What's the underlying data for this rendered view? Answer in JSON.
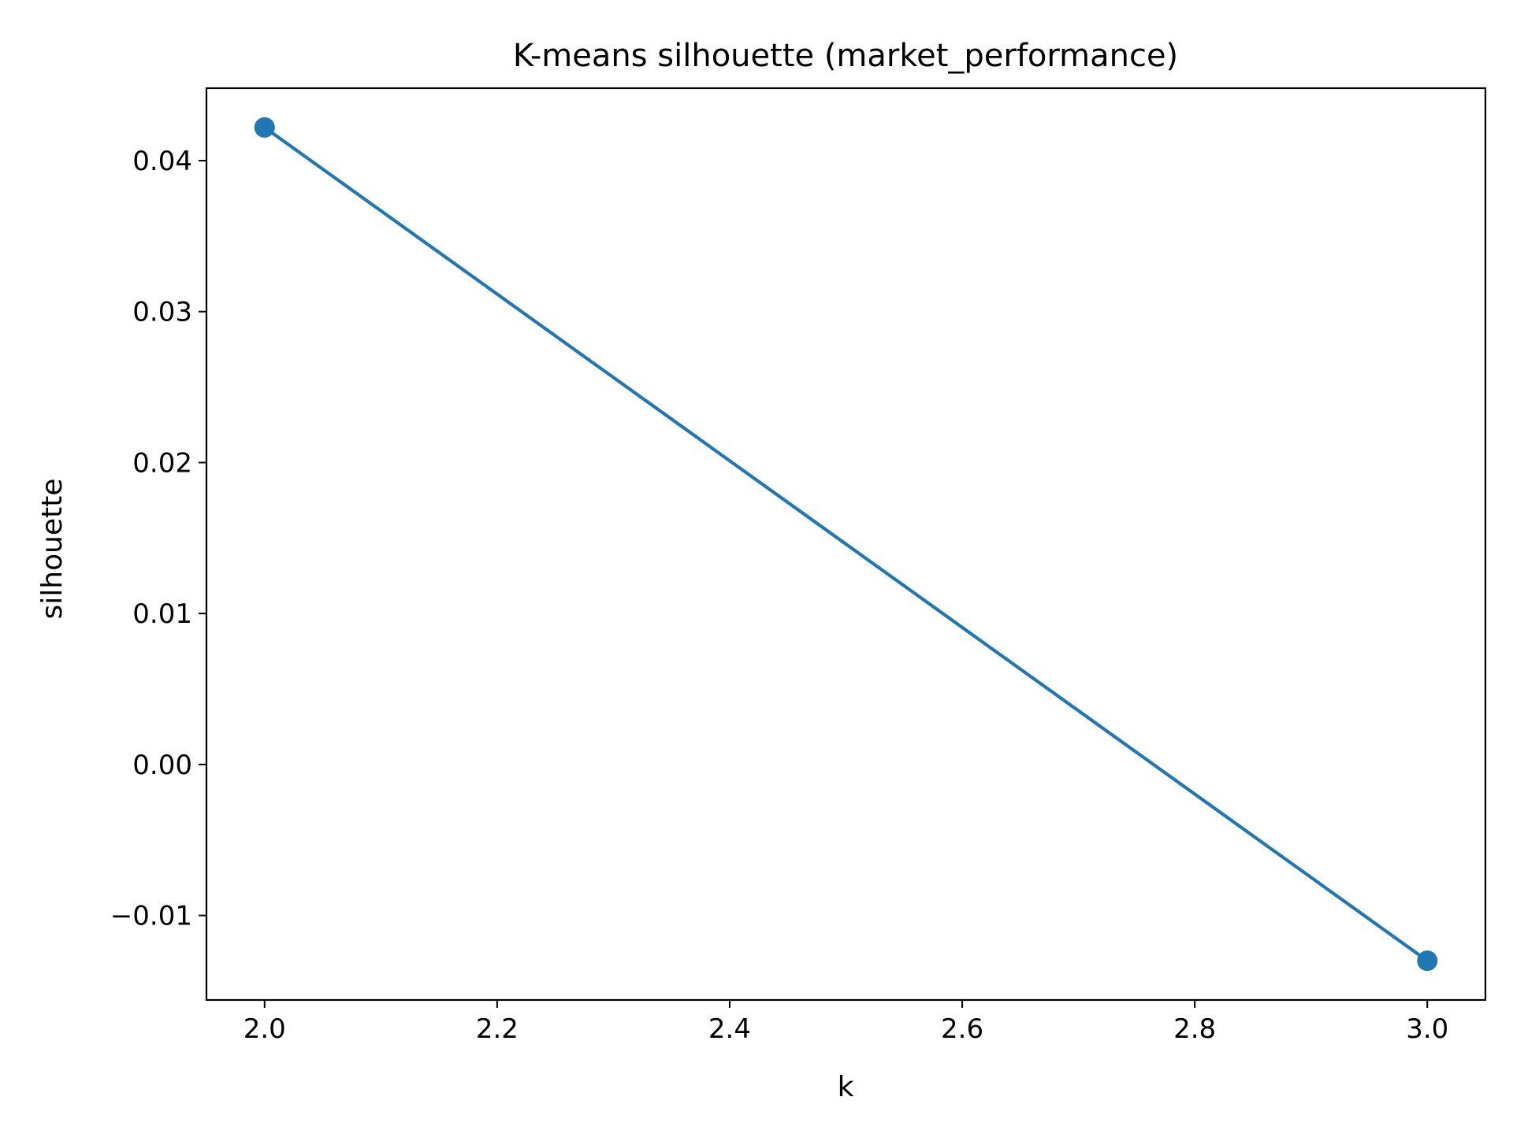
{
  "chart_data": {
    "type": "line",
    "title": "K-means silhouette (market_performance)",
    "xlabel": "k",
    "ylabel": "silhouette",
    "x": [
      2,
      3
    ],
    "series": [
      {
        "values": [
          0.0422,
          -0.013
        ],
        "color": "#1f77b4",
        "marker": "circle"
      }
    ],
    "xlim": [
      1.95,
      3.05
    ],
    "ylim": [
      -0.0156,
      0.0448
    ],
    "xticks": [
      2.0,
      2.2,
      2.4,
      2.6,
      2.8,
      3.0
    ],
    "xtick_labels": [
      "2.0",
      "2.2",
      "2.4",
      "2.6",
      "2.8",
      "3.0"
    ],
    "yticks": [
      -0.01,
      0.0,
      0.01,
      0.02,
      0.03,
      0.04
    ],
    "ytick_labels": [
      "−0.01",
      "0.00",
      "0.01",
      "0.02",
      "0.03",
      "0.04"
    ],
    "grid": false,
    "legend": "none"
  }
}
